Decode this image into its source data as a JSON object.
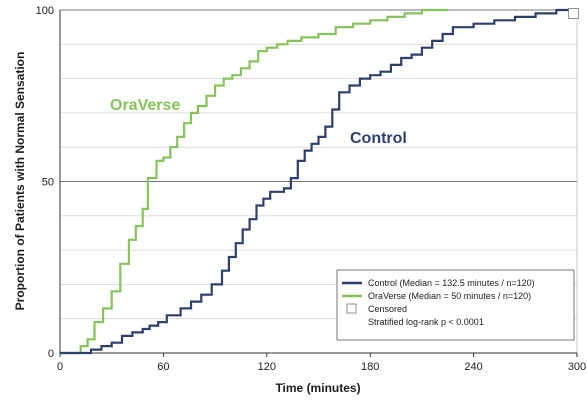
{
  "chart_data": {
    "type": "line",
    "step": true,
    "xlabel": "Time  (minutes)",
    "ylabel": "Proportion of Patients with Normal Sensation",
    "xlim": [
      0,
      300
    ],
    "ylim": [
      0,
      100
    ],
    "xticks": [
      0,
      60,
      120,
      180,
      240,
      300
    ],
    "yticks": [
      0,
      50,
      100
    ],
    "grid": true,
    "legend_position": "bottom-right",
    "series": [
      {
        "name": "OraVerse",
        "label": "OraVerse",
        "legend": "OraVerse (Median = 50 minutes / n=120)",
        "color": "#86c35a",
        "points": [
          [
            0,
            0
          ],
          [
            10,
            0
          ],
          [
            12,
            2
          ],
          [
            16,
            4
          ],
          [
            20,
            9
          ],
          [
            25,
            13
          ],
          [
            30,
            18
          ],
          [
            35,
            26
          ],
          [
            40,
            33
          ],
          [
            44,
            37
          ],
          [
            48,
            42
          ],
          [
            51,
            51
          ],
          [
            56,
            56
          ],
          [
            60,
            57
          ],
          [
            64,
            60
          ],
          [
            68,
            63
          ],
          [
            72,
            67
          ],
          [
            76,
            70
          ],
          [
            80,
            72
          ],
          [
            85,
            75
          ],
          [
            90,
            78
          ],
          [
            95,
            80
          ],
          [
            100,
            81
          ],
          [
            105,
            83
          ],
          [
            110,
            85
          ],
          [
            115,
            88
          ],
          [
            120,
            89
          ],
          [
            126,
            90
          ],
          [
            132,
            91
          ],
          [
            140,
            92
          ],
          [
            150,
            93
          ],
          [
            160,
            95
          ],
          [
            170,
            96
          ],
          [
            180,
            97
          ],
          [
            190,
            98
          ],
          [
            200,
            99
          ],
          [
            210,
            100
          ],
          [
            225,
            100
          ]
        ]
      },
      {
        "name": "Control",
        "label": "Control",
        "legend": "Control (Median = 132.5 minutes / n=120)",
        "color": "#2d3f6e",
        "points": [
          [
            0,
            0
          ],
          [
            15,
            0
          ],
          [
            18,
            1
          ],
          [
            24,
            2
          ],
          [
            30,
            3
          ],
          [
            36,
            5
          ],
          [
            42,
            6
          ],
          [
            48,
            7
          ],
          [
            52,
            8
          ],
          [
            57,
            9
          ],
          [
            62,
            11
          ],
          [
            70,
            13
          ],
          [
            76,
            15
          ],
          [
            82,
            17
          ],
          [
            88,
            20
          ],
          [
            94,
            24
          ],
          [
            98,
            28
          ],
          [
            102,
            32
          ],
          [
            106,
            36
          ],
          [
            110,
            39
          ],
          [
            114,
            43
          ],
          [
            118,
            45
          ],
          [
            122,
            47
          ],
          [
            130,
            48
          ],
          [
            134,
            51
          ],
          [
            138,
            56
          ],
          [
            142,
            59
          ],
          [
            146,
            61
          ],
          [
            150,
            63
          ],
          [
            154,
            66
          ],
          [
            158,
            71
          ],
          [
            162,
            76
          ],
          [
            168,
            78
          ],
          [
            174,
            80
          ],
          [
            180,
            81
          ],
          [
            186,
            82
          ],
          [
            192,
            84
          ],
          [
            198,
            86
          ],
          [
            204,
            87
          ],
          [
            210,
            89
          ],
          [
            216,
            91
          ],
          [
            222,
            93
          ],
          [
            228,
            95
          ],
          [
            240,
            96
          ],
          [
            252,
            97
          ],
          [
            264,
            98
          ],
          [
            276,
            99
          ],
          [
            288,
            100
          ],
          [
            300,
            100
          ]
        ]
      }
    ],
    "censored": [
      [
        298,
        99
      ]
    ],
    "legend": {
      "censored": "Censored",
      "note": "Stratified log-rank p < 0.0001"
    }
  }
}
